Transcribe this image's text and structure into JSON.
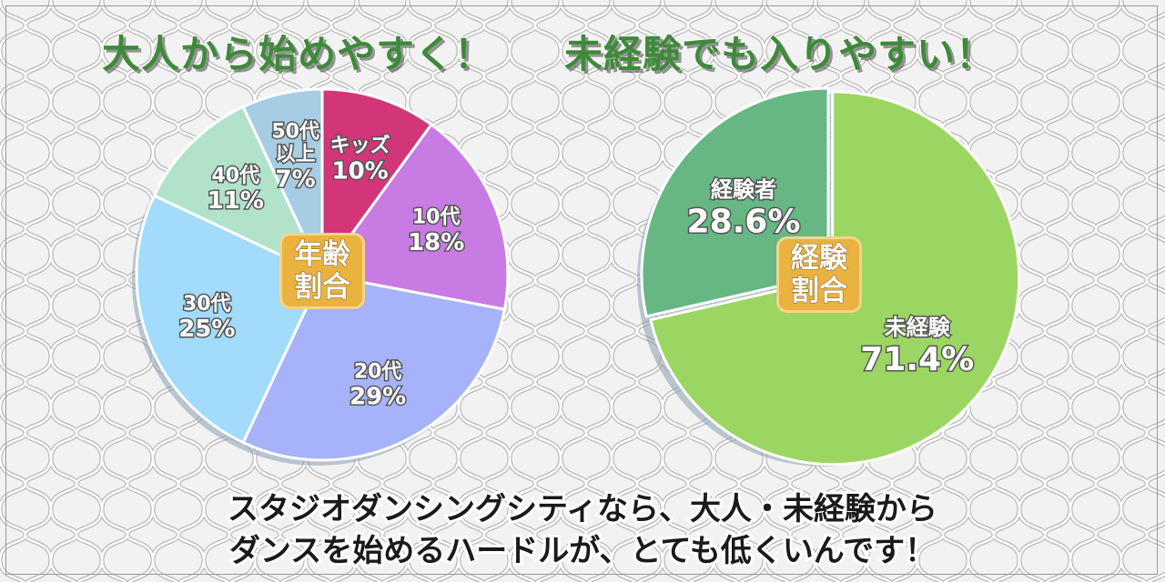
{
  "headline": {
    "left": "大人から始めやすく！",
    "right": "未経験でも入りやすい！"
  },
  "chart_data": [
    {
      "type": "pie",
      "title": "",
      "center_label": [
        "年齢",
        "割合"
      ],
      "slices": [
        {
          "label": [
            "キッズ"
          ],
          "value": 10,
          "value_text": "10%",
          "color": "#d33579"
        },
        {
          "label": [
            "10代"
          ],
          "value": 18,
          "value_text": "18%",
          "color": "#c77be3"
        },
        {
          "label": [
            "20代"
          ],
          "value": 29,
          "value_text": "29%",
          "color": "#a6b3fb"
        },
        {
          "label": [
            "30代"
          ],
          "value": 25,
          "value_text": "25%",
          "color": "#a2dbfb"
        },
        {
          "label": [
            "40代"
          ],
          "value": 11,
          "value_text": "11%",
          "color": "#b0e3ca"
        },
        {
          "label": [
            "50代",
            "以上"
          ],
          "value": 7,
          "value_text": "7%",
          "color": "#a6cde3"
        }
      ]
    },
    {
      "type": "pie",
      "title": "",
      "center_label": [
        "経験",
        "割合"
      ],
      "slices": [
        {
          "label": [
            "未経験"
          ],
          "value": 71.4,
          "value_text": "71.4%",
          "color": "#9bd662"
        },
        {
          "label": [
            "経験者"
          ],
          "value": 28.6,
          "value_text": "28.6%",
          "color": "#66b783"
        }
      ]
    }
  ],
  "bottom_text": {
    "line1": "スタジオダンシングシティなら、大人・未経験から",
    "line2": "ダンスを始めるハードルが、とても低くいんです！"
  }
}
